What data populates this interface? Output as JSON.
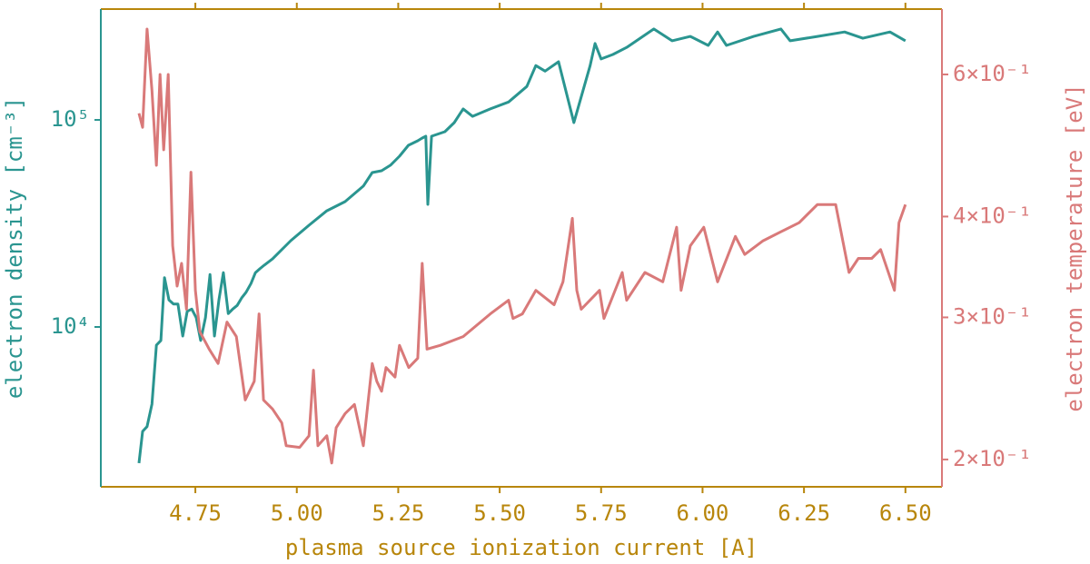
{
  "chart_data": {
    "type": "line",
    "xlabel": "plasma source ionization current [A]",
    "ylabel": "electron density [cm⁻³]",
    "y2label": "electron temperature [eV]",
    "xlim": [
      4.517,
      6.59
    ],
    "ylim": [
      1690,
      343000
    ],
    "y2lim": [
      0.185,
      0.723
    ],
    "yscale": "log",
    "y2scale": "log",
    "xticks": [
      4.75,
      {
        "value": 5,
        "label": "5.00"
      },
      5.25,
      {
        "value": 5.5,
        "label": "5.50"
      },
      5.75,
      {
        "value": 6,
        "label": "6.00"
      },
      6.25,
      {
        "value": 6.5,
        "label": "6.50"
      }
    ],
    "yticks": [
      {
        "value": 10000,
        "label": "10⁴"
      },
      {
        "value": 100000,
        "label": "10⁵"
      }
    ],
    "y2ticks": [
      {
        "value": 0.2,
        "label": "2×10⁻¹"
      },
      {
        "value": 0.3,
        "label": "3×10⁻¹"
      },
      {
        "value": 0.4,
        "label": "4×10⁻¹"
      },
      {
        "value": 0.6,
        "label": "6×10⁻¹"
      }
    ],
    "xaxis_color": "#b8860b",
    "series": [
      {
        "color": "#2a9590",
        "axis": "y",
        "x": [
          4.611,
          4.62,
          4.631,
          4.643,
          4.654,
          4.665,
          4.674,
          4.685,
          4.696,
          4.707,
          4.719,
          4.73,
          4.741,
          4.752,
          4.763,
          4.775,
          4.786,
          4.797,
          4.808,
          4.819,
          4.831,
          4.842,
          4.853,
          4.864,
          4.875,
          4.887,
          4.898,
          4.909,
          4.92,
          4.94,
          4.985,
          5.03,
          5.074,
          5.119,
          5.164,
          5.186,
          5.209,
          5.231,
          5.253,
          5.275,
          5.298,
          5.309,
          5.318,
          5.323,
          5.332,
          5.365,
          5.388,
          5.41,
          5.433,
          5.477,
          5.522,
          5.567,
          5.589,
          5.612,
          5.645,
          5.683,
          5.723,
          5.735,
          5.75,
          5.779,
          5.813,
          5.88,
          5.925,
          5.97,
          6.014,
          6.037,
          6.059,
          6.126,
          6.193,
          6.216,
          6.283,
          6.35,
          6.395,
          6.462,
          6.5
        ],
        "values": [
          2200,
          3130,
          3300,
          4240,
          8170,
          8600,
          17300,
          13500,
          12900,
          12900,
          9040,
          11900,
          12200,
          11100,
          8600,
          11100,
          17900,
          9040,
          13500,
          18300,
          11600,
          12200,
          12700,
          13800,
          14700,
          16200,
          18300,
          19100,
          19900,
          21300,
          26100,
          31000,
          36400,
          40300,
          47900,
          55700,
          56800,
          60400,
          66800,
          75400,
          79300,
          81700,
          83400,
          39100,
          83400,
          87700,
          97000,
          113000,
          104000,
          113000,
          122000,
          145000,
          183000,
          172000,
          191000,
          97000,
          183000,
          234000,
          197000,
          207000,
          224000,
          275000,
          241000,
          253000,
          229000,
          266000,
          229000,
          253000,
          275000,
          241000,
          253000,
          266000,
          248000,
          266000,
          241000
        ]
      },
      {
        "color": "#d97979",
        "axis": "y2",
        "x": [
          4.611,
          4.62,
          4.631,
          4.643,
          4.654,
          4.663,
          4.672,
          4.683,
          4.694,
          4.705,
          4.716,
          4.728,
          4.739,
          4.75,
          4.761,
          4.784,
          4.806,
          4.828,
          4.851,
          4.873,
          4.895,
          4.907,
          4.918,
          4.94,
          4.963,
          4.974,
          5.007,
          5.03,
          5.041,
          5.052,
          5.074,
          5.086,
          5.097,
          5.119,
          5.142,
          5.164,
          5.186,
          5.197,
          5.209,
          5.22,
          5.242,
          5.253,
          5.276,
          5.298,
          5.309,
          5.321,
          5.354,
          5.41,
          5.477,
          5.522,
          5.533,
          5.556,
          5.589,
          5.634,
          5.656,
          5.679,
          5.69,
          5.701,
          5.746,
          5.757,
          5.802,
          5.813,
          5.858,
          5.902,
          5.936,
          5.947,
          5.97,
          6.003,
          6.037,
          6.081,
          6.104,
          6.148,
          6.193,
          6.238,
          6.283,
          6.328,
          6.361,
          6.384,
          6.417,
          6.439,
          6.473,
          6.484,
          6.5
        ],
        "values": [
          0.537,
          0.516,
          0.683,
          0.573,
          0.463,
          0.6,
          0.484,
          0.6,
          0.368,
          0.328,
          0.35,
          0.307,
          0.454,
          0.324,
          0.288,
          0.274,
          0.263,
          0.296,
          0.284,
          0.237,
          0.25,
          0.303,
          0.237,
          0.231,
          0.222,
          0.208,
          0.207,
          0.214,
          0.258,
          0.208,
          0.214,
          0.198,
          0.219,
          0.228,
          0.234,
          0.208,
          0.263,
          0.25,
          0.243,
          0.26,
          0.253,
          0.277,
          0.26,
          0.267,
          0.35,
          0.274,
          0.277,
          0.284,
          0.303,
          0.315,
          0.299,
          0.303,
          0.324,
          0.311,
          0.332,
          0.398,
          0.324,
          0.307,
          0.324,
          0.299,
          0.341,
          0.315,
          0.341,
          0.332,
          0.388,
          0.324,
          0.368,
          0.388,
          0.332,
          0.378,
          0.359,
          0.373,
          0.383,
          0.393,
          0.414,
          0.414,
          0.341,
          0.355,
          0.355,
          0.364,
          0.324,
          0.393,
          0.414
        ]
      }
    ]
  }
}
